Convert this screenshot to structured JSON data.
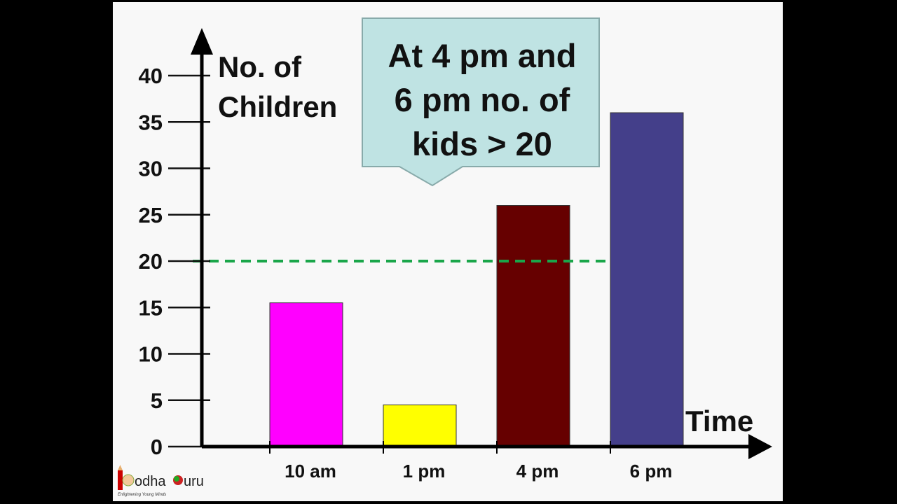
{
  "chart_data": {
    "type": "bar",
    "categories": [
      "10 am",
      "1 pm",
      "4 pm",
      "6 pm"
    ],
    "values": [
      15.5,
      4.5,
      26,
      36
    ],
    "colors": [
      "#ff00ff",
      "#ffff00",
      "#660000",
      "#443f8a"
    ],
    "ylabel": "No. of Children",
    "xlabel": "Time",
    "ylim": [
      0,
      40
    ],
    "yticks": [
      0,
      5,
      10,
      15,
      20,
      25,
      30,
      35,
      40
    ],
    "reference_line": {
      "value": 20,
      "color": "#1aa64a",
      "style": "dashed"
    },
    "annotation": {
      "lines": [
        "At 4 pm and",
        "6 pm no. of",
        "kids > 20"
      ],
      "fill": "#bfe3e3"
    },
    "grid": false
  },
  "logo": {
    "text": "bodhaguru",
    "tagline": "Enlightening Young Minds"
  }
}
